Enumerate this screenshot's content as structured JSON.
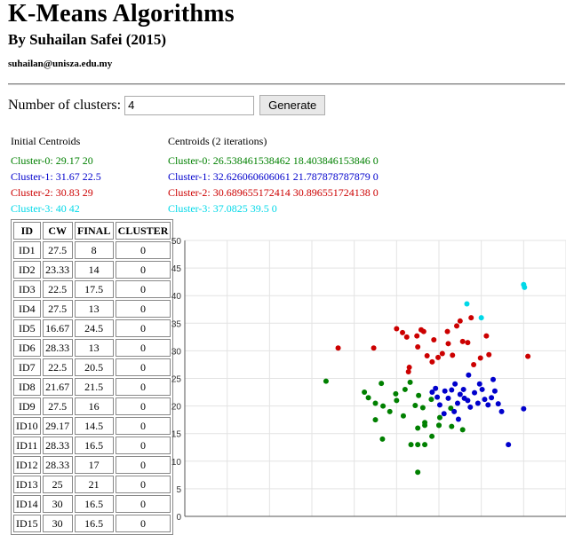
{
  "header": {
    "title": "K-Means Algorithms",
    "author": "By Suhailan Safei (2015)",
    "email": "suhailan@unisza.edu.my"
  },
  "controls": {
    "clusters_label": "Number of clusters:",
    "clusters_value": "4",
    "generate_label": "Generate"
  },
  "initial_centroids": {
    "heading": "Initial Centroids",
    "items": [
      {
        "text": "Cluster-0: 29.17  20",
        "color": "#008000"
      },
      {
        "text": "Cluster-1: 31.67  22.5",
        "color": "#0000cc"
      },
      {
        "text": "Cluster-2: 30.83  29",
        "color": "#cc0000"
      },
      {
        "text": "Cluster-3: 40  42",
        "color": "#00d8e8"
      }
    ]
  },
  "centroids": {
    "heading": "Centroids (2 iterations)",
    "items": [
      {
        "text": "Cluster-0: 26.538461538462  18.403846153846  0",
        "color": "#008000"
      },
      {
        "text": "Cluster-1: 32.626060606061  21.787878787879  0",
        "color": "#0000cc"
      },
      {
        "text": "Cluster-2: 30.689655172414  30.896551724138  0",
        "color": "#cc0000"
      },
      {
        "text": "Cluster-3: 37.0825  39.5  0",
        "color": "#00d8e8"
      }
    ]
  },
  "table": {
    "headers": [
      "ID",
      "CW",
      "FINAL",
      "CLUSTER"
    ],
    "rows": [
      [
        "ID1",
        "27.5",
        "8",
        "0"
      ],
      [
        "ID2",
        "23.33",
        "14",
        "0"
      ],
      [
        "ID3",
        "22.5",
        "17.5",
        "0"
      ],
      [
        "ID4",
        "27.5",
        "13",
        "0"
      ],
      [
        "ID5",
        "16.67",
        "24.5",
        "0"
      ],
      [
        "ID6",
        "28.33",
        "13",
        "0"
      ],
      [
        "ID7",
        "22.5",
        "20.5",
        "0"
      ],
      [
        "ID8",
        "21.67",
        "21.5",
        "0"
      ],
      [
        "ID9",
        "27.5",
        "16",
        "0"
      ],
      [
        "ID10",
        "29.17",
        "14.5",
        "0"
      ],
      [
        "ID11",
        "28.33",
        "16.5",
        "0"
      ],
      [
        "ID12",
        "28.33",
        "17",
        "0"
      ],
      [
        "ID13",
        "25",
        "21",
        "0"
      ],
      [
        "ID14",
        "30",
        "16.5",
        "0"
      ],
      [
        "ID15",
        "30",
        "16.5",
        "0"
      ]
    ]
  },
  "chart_data": {
    "type": "scatter",
    "title": "",
    "xlabel": "",
    "ylabel": "",
    "xlim": [
      0,
      45
    ],
    "ylim": [
      0,
      50
    ],
    "yticks": [
      0,
      5,
      10,
      15,
      20,
      25,
      30,
      35,
      40,
      45,
      50
    ],
    "grid": true,
    "series": [
      {
        "color": "#008000",
        "points": [
          [
            27.5,
            8
          ],
          [
            23.33,
            14
          ],
          [
            22.5,
            17.5
          ],
          [
            27.5,
            13
          ],
          [
            16.67,
            24.5
          ],
          [
            28.33,
            13
          ],
          [
            22.5,
            20.5
          ],
          [
            21.67,
            21.5
          ],
          [
            27.5,
            16
          ],
          [
            29.17,
            14.5
          ],
          [
            28.33,
            16.5
          ],
          [
            28.33,
            17
          ],
          [
            25,
            21
          ],
          [
            30,
            16.5
          ],
          [
            30,
            16.5
          ],
          [
            26.7,
            13
          ],
          [
            25.8,
            18.2
          ],
          [
            24.2,
            19
          ],
          [
            23.4,
            20
          ],
          [
            24.9,
            22.2
          ],
          [
            26,
            23
          ],
          [
            27.2,
            20.1
          ],
          [
            28.1,
            19.7
          ],
          [
            29.1,
            21.2
          ],
          [
            27.6,
            21.9
          ],
          [
            26.6,
            24.3
          ],
          [
            23.2,
            24.1
          ],
          [
            21.2,
            22.5
          ],
          [
            30.1,
            17.9
          ],
          [
            31.4,
            19.6
          ],
          [
            31.5,
            16.3
          ],
          [
            32.8,
            15.7
          ]
        ]
      },
      {
        "color": "#0000cc",
        "points": [
          [
            29.2,
            22.5
          ],
          [
            29.8,
            21.6
          ],
          [
            29.6,
            23.2
          ],
          [
            30.1,
            20.2
          ],
          [
            30.7,
            22.7
          ],
          [
            31.1,
            21.4
          ],
          [
            31.5,
            22.9
          ],
          [
            31.9,
            24
          ],
          [
            32.2,
            20.5
          ],
          [
            32.5,
            22.1
          ],
          [
            32.9,
            23
          ],
          [
            33.4,
            21
          ],
          [
            33.7,
            19.8
          ],
          [
            34.2,
            22.4
          ],
          [
            34.6,
            20.5
          ],
          [
            35.1,
            23
          ],
          [
            35.4,
            21.2
          ],
          [
            35.8,
            20.2
          ],
          [
            36.2,
            21.5
          ],
          [
            36.6,
            22.7
          ],
          [
            37,
            20.4
          ],
          [
            37.4,
            19
          ],
          [
            36.4,
            24.8
          ],
          [
            34.8,
            24
          ],
          [
            33.5,
            25.6
          ],
          [
            32.3,
            17.6
          ],
          [
            30.6,
            18.6
          ],
          [
            38.2,
            13
          ],
          [
            40,
            19.5
          ],
          [
            33,
            21.4
          ],
          [
            31.8,
            19
          ]
        ]
      },
      {
        "color": "#cc0000",
        "points": [
          [
            18.1,
            30.5
          ],
          [
            22.3,
            30.5
          ],
          [
            25,
            34
          ],
          [
            25.7,
            33.3
          ],
          [
            26.2,
            32.5
          ],
          [
            26.5,
            27
          ],
          [
            26.4,
            26.2
          ],
          [
            27.4,
            32.7
          ],
          [
            27.5,
            30.7
          ],
          [
            28.2,
            33.5
          ],
          [
            28.6,
            29.1
          ],
          [
            29.2,
            28
          ],
          [
            29.9,
            28.8
          ],
          [
            30.4,
            29.5
          ],
          [
            31.1,
            31.3
          ],
          [
            31.6,
            29.2
          ],
          [
            32.1,
            34.5
          ],
          [
            32.8,
            31.7
          ],
          [
            33.4,
            31.5
          ],
          [
            33.8,
            36
          ],
          [
            34.1,
            27.5
          ],
          [
            34.9,
            28.7
          ],
          [
            35.6,
            32.7
          ],
          [
            35.9,
            29.3
          ],
          [
            32.5,
            35.4
          ],
          [
            31,
            33.5
          ],
          [
            29.4,
            32
          ],
          [
            27.9,
            33.8
          ],
          [
            40.5,
            29
          ]
        ]
      },
      {
        "color": "#00d8e8",
        "points": [
          [
            33.3,
            38.5
          ],
          [
            35,
            36
          ],
          [
            40,
            42
          ],
          [
            40.1,
            41.5
          ]
        ]
      }
    ]
  }
}
